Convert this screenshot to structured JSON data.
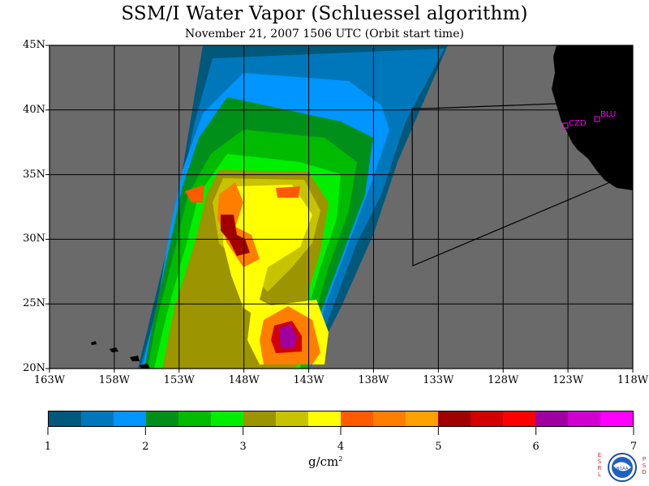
{
  "title": "SSM/I Water Vapor (Schluessel algorithm)",
  "subtitle": "November 21, 2007  1506 UTC  (Orbit start time)",
  "lat_labels": [
    "45N",
    "40N",
    "35N",
    "30N",
    "25N",
    "20N"
  ],
  "lon_labels": [
    "163W",
    "158W",
    "153W",
    "148W",
    "143W",
    "138W",
    "133W",
    "128W",
    "123W",
    "118W"
  ],
  "stations": [
    {
      "code": "CZD"
    },
    {
      "code": "BLU"
    }
  ],
  "colorbar": {
    "tick_labels": [
      "1",
      "2",
      "3",
      "4",
      "5",
      "6",
      "7"
    ],
    "units_base": "g/cm",
    "units_exp": "2",
    "colors": [
      "#00587a",
      "#0077bb",
      "#0095ff",
      "#00901a",
      "#00bb00",
      "#00ef00",
      "#9c9400",
      "#c8c300",
      "#ffff00",
      "#ff5a00",
      "#ff7e00",
      "#ffa100",
      "#a00000",
      "#d20000",
      "#ff0000",
      "#a000a0",
      "#d000d0",
      "#ff00ff"
    ]
  },
  "map_colors": {
    "land": "#000000",
    "ocean_nodata": "#6a6a6a",
    "grid": "#000000"
  },
  "logo_text": {
    "left": "ESRL",
    "right": "PSD",
    "center": "NOAA"
  }
}
